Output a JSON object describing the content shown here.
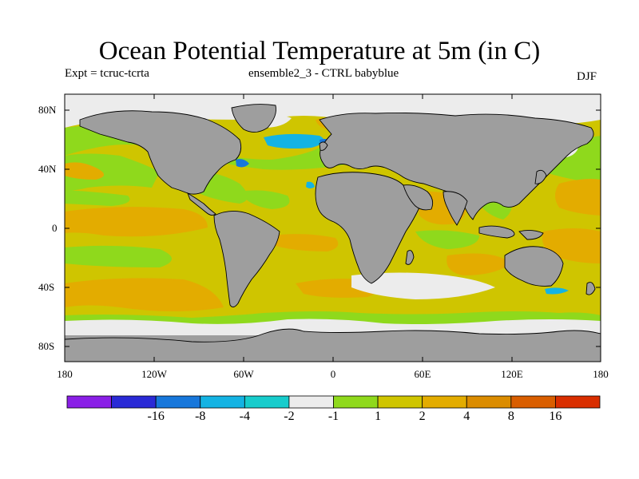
{
  "header": {
    "title": "Ocean Potential Temperature at 5m (in C)",
    "experiment": "Expt = tcruc-tcrta",
    "ensemble": "ensemble2_3 - CTRL babyblue",
    "season": "DJF"
  },
  "map": {
    "projection": "cylindrical-equidistant",
    "lat_range": [
      -90,
      90
    ],
    "lon_range": [
      -180,
      180
    ],
    "lat_labels": [
      "80N",
      "40N",
      "0",
      "40S",
      "80S"
    ],
    "lon_labels": [
      "180",
      "120W",
      "60W",
      "0",
      "60E",
      "120E",
      "180"
    ],
    "land_color": "#9e9e9e",
    "coastline_color": "#000000"
  },
  "colorbar": {
    "colors": [
      "#8a1fe6",
      "#2a2ad6",
      "#1777db",
      "#14b3e3",
      "#17cccc",
      "#ececec",
      "#8fd91c",
      "#cfc500",
      "#e3ac00",
      "#db8c00",
      "#d95e00",
      "#d92e00"
    ],
    "labels": [
      "-16",
      "-8",
      "-4",
      "-2",
      "-1",
      "1",
      "2",
      "4",
      "8",
      "16"
    ]
  }
}
